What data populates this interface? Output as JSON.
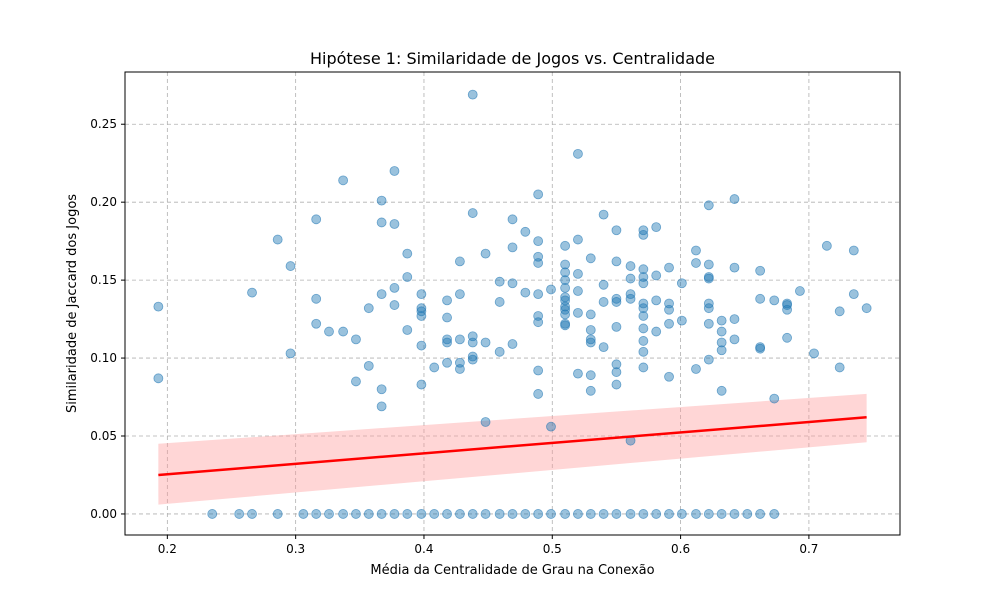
{
  "chart_data": {
    "type": "scatter",
    "title": "Hipótese 1: Similaridade de Jogos vs. Centralidade",
    "xlabel": "Média da Centralidade de Grau na Conexão",
    "ylabel": "Similaridade de Jaccard dos Jogos",
    "xlim": [
      0.167,
      0.771
    ],
    "ylim": [
      -0.0135,
      0.2835
    ],
    "xticks": [
      0.2,
      0.3,
      0.4,
      0.5,
      0.6,
      0.7
    ],
    "xtick_labels": [
      "0.2",
      "0.3",
      "0.4",
      "0.5",
      "0.6",
      "0.7"
    ],
    "yticks": [
      0.0,
      0.05,
      0.1,
      0.15,
      0.2,
      0.25
    ],
    "ytick_labels": [
      "0.00",
      "0.05",
      "0.10",
      "0.15",
      "0.20",
      "0.25"
    ],
    "grid": true,
    "colors": {
      "points": "#1f77b4",
      "fit_line": "#ff0000",
      "confidence_band": "#ff9999"
    },
    "points": [
      [
        0.193,
        0.133
      ],
      [
        0.193,
        0.087
      ],
      [
        0.266,
        0.142
      ],
      [
        0.286,
        0.176
      ],
      [
        0.296,
        0.159
      ],
      [
        0.296,
        0.103
      ],
      [
        0.316,
        0.189
      ],
      [
        0.316,
        0.138
      ],
      [
        0.316,
        0.122
      ],
      [
        0.326,
        0.117
      ],
      [
        0.337,
        0.214
      ],
      [
        0.337,
        0.117
      ],
      [
        0.347,
        0.112
      ],
      [
        0.347,
        0.085
      ],
      [
        0.357,
        0.132
      ],
      [
        0.357,
        0.095
      ],
      [
        0.367,
        0.201
      ],
      [
        0.367,
        0.187
      ],
      [
        0.367,
        0.141
      ],
      [
        0.367,
        0.08
      ],
      [
        0.367,
        0.069
      ],
      [
        0.377,
        0.22
      ],
      [
        0.377,
        0.186
      ],
      [
        0.377,
        0.145
      ],
      [
        0.377,
        0.134
      ],
      [
        0.387,
        0.167
      ],
      [
        0.387,
        0.152
      ],
      [
        0.387,
        0.118
      ],
      [
        0.398,
        0.141
      ],
      [
        0.398,
        0.132
      ],
      [
        0.398,
        0.13
      ],
      [
        0.398,
        0.127
      ],
      [
        0.398,
        0.108
      ],
      [
        0.398,
        0.083
      ],
      [
        0.408,
        0.094
      ],
      [
        0.418,
        0.137
      ],
      [
        0.418,
        0.126
      ],
      [
        0.418,
        0.112
      ],
      [
        0.418,
        0.11
      ],
      [
        0.418,
        0.097
      ],
      [
        0.428,
        0.162
      ],
      [
        0.428,
        0.141
      ],
      [
        0.428,
        0.112
      ],
      [
        0.428,
        0.097
      ],
      [
        0.428,
        0.093
      ],
      [
        0.438,
        0.269
      ],
      [
        0.438,
        0.193
      ],
      [
        0.438,
        0.114
      ],
      [
        0.438,
        0.11
      ],
      [
        0.438,
        0.101
      ],
      [
        0.438,
        0.099
      ],
      [
        0.448,
        0.167
      ],
      [
        0.448,
        0.11
      ],
      [
        0.448,
        0.059
      ],
      [
        0.459,
        0.149
      ],
      [
        0.459,
        0.136
      ],
      [
        0.459,
        0.104
      ],
      [
        0.469,
        0.189
      ],
      [
        0.469,
        0.171
      ],
      [
        0.469,
        0.148
      ],
      [
        0.469,
        0.109
      ],
      [
        0.479,
        0.181
      ],
      [
        0.479,
        0.142
      ],
      [
        0.489,
        0.205
      ],
      [
        0.489,
        0.175
      ],
      [
        0.489,
        0.165
      ],
      [
        0.489,
        0.161
      ],
      [
        0.489,
        0.141
      ],
      [
        0.489,
        0.127
      ],
      [
        0.489,
        0.123
      ],
      [
        0.489,
        0.092
      ],
      [
        0.489,
        0.077
      ],
      [
        0.499,
        0.144
      ],
      [
        0.499,
        0.056
      ],
      [
        0.51,
        0.172
      ],
      [
        0.51,
        0.16
      ],
      [
        0.51,
        0.155
      ],
      [
        0.51,
        0.15
      ],
      [
        0.51,
        0.145
      ],
      [
        0.51,
        0.139
      ],
      [
        0.51,
        0.137
      ],
      [
        0.51,
        0.133
      ],
      [
        0.51,
        0.131
      ],
      [
        0.51,
        0.128
      ],
      [
        0.51,
        0.122
      ],
      [
        0.51,
        0.121
      ],
      [
        0.52,
        0.231
      ],
      [
        0.52,
        0.176
      ],
      [
        0.52,
        0.154
      ],
      [
        0.52,
        0.143
      ],
      [
        0.52,
        0.129
      ],
      [
        0.52,
        0.09
      ],
      [
        0.53,
        0.164
      ],
      [
        0.53,
        0.128
      ],
      [
        0.53,
        0.118
      ],
      [
        0.53,
        0.112
      ],
      [
        0.53,
        0.11
      ],
      [
        0.53,
        0.089
      ],
      [
        0.53,
        0.079
      ],
      [
        0.54,
        0.192
      ],
      [
        0.54,
        0.147
      ],
      [
        0.54,
        0.136
      ],
      [
        0.54,
        0.107
      ],
      [
        0.55,
        0.182
      ],
      [
        0.55,
        0.162
      ],
      [
        0.55,
        0.138
      ],
      [
        0.55,
        0.136
      ],
      [
        0.55,
        0.12
      ],
      [
        0.55,
        0.096
      ],
      [
        0.55,
        0.091
      ],
      [
        0.55,
        0.083
      ],
      [
        0.561,
        0.159
      ],
      [
        0.561,
        0.151
      ],
      [
        0.561,
        0.141
      ],
      [
        0.561,
        0.138
      ],
      [
        0.561,
        0.047
      ],
      [
        0.571,
        0.182
      ],
      [
        0.571,
        0.179
      ],
      [
        0.571,
        0.157
      ],
      [
        0.571,
        0.152
      ],
      [
        0.571,
        0.148
      ],
      [
        0.571,
        0.135
      ],
      [
        0.571,
        0.132
      ],
      [
        0.571,
        0.127
      ],
      [
        0.571,
        0.119
      ],
      [
        0.571,
        0.111
      ],
      [
        0.571,
        0.104
      ],
      [
        0.571,
        0.094
      ],
      [
        0.581,
        0.184
      ],
      [
        0.581,
        0.153
      ],
      [
        0.581,
        0.137
      ],
      [
        0.581,
        0.117
      ],
      [
        0.591,
        0.158
      ],
      [
        0.591,
        0.135
      ],
      [
        0.591,
        0.131
      ],
      [
        0.591,
        0.122
      ],
      [
        0.591,
        0.088
      ],
      [
        0.601,
        0.148
      ],
      [
        0.601,
        0.124
      ],
      [
        0.612,
        0.169
      ],
      [
        0.612,
        0.161
      ],
      [
        0.612,
        0.093
      ],
      [
        0.622,
        0.198
      ],
      [
        0.622,
        0.16
      ],
      [
        0.622,
        0.152
      ],
      [
        0.622,
        0.151
      ],
      [
        0.622,
        0.135
      ],
      [
        0.622,
        0.132
      ],
      [
        0.622,
        0.122
      ],
      [
        0.622,
        0.099
      ],
      [
        0.632,
        0.124
      ],
      [
        0.632,
        0.117
      ],
      [
        0.632,
        0.11
      ],
      [
        0.632,
        0.105
      ],
      [
        0.632,
        0.079
      ],
      [
        0.642,
        0.202
      ],
      [
        0.642,
        0.158
      ],
      [
        0.642,
        0.125
      ],
      [
        0.642,
        0.112
      ],
      [
        0.662,
        0.156
      ],
      [
        0.662,
        0.138
      ],
      [
        0.662,
        0.107
      ],
      [
        0.662,
        0.106
      ],
      [
        0.673,
        0.137
      ],
      [
        0.673,
        0.074
      ],
      [
        0.683,
        0.135
      ],
      [
        0.683,
        0.134
      ],
      [
        0.683,
        0.131
      ],
      [
        0.683,
        0.113
      ],
      [
        0.693,
        0.143
      ],
      [
        0.704,
        0.103
      ],
      [
        0.714,
        0.172
      ],
      [
        0.724,
        0.13
      ],
      [
        0.724,
        0.094
      ],
      [
        0.735,
        0.169
      ],
      [
        0.735,
        0.141
      ],
      [
        0.745,
        0.132
      ],
      [
        0.235,
        0.0
      ],
      [
        0.256,
        0.0
      ],
      [
        0.266,
        0.0
      ],
      [
        0.286,
        0.0
      ],
      [
        0.306,
        0.0
      ],
      [
        0.316,
        0.0
      ],
      [
        0.326,
        0.0
      ],
      [
        0.337,
        0.0
      ],
      [
        0.347,
        0.0
      ],
      [
        0.357,
        0.0
      ],
      [
        0.367,
        0.0
      ],
      [
        0.377,
        0.0
      ],
      [
        0.387,
        0.0
      ],
      [
        0.398,
        0.0
      ],
      [
        0.408,
        0.0
      ],
      [
        0.418,
        0.0
      ],
      [
        0.428,
        0.0
      ],
      [
        0.438,
        0.0
      ],
      [
        0.448,
        0.0
      ],
      [
        0.459,
        0.0
      ],
      [
        0.469,
        0.0
      ],
      [
        0.479,
        0.0
      ],
      [
        0.489,
        0.0
      ],
      [
        0.499,
        0.0
      ],
      [
        0.51,
        0.0
      ],
      [
        0.52,
        0.0
      ],
      [
        0.53,
        0.0
      ],
      [
        0.54,
        0.0
      ],
      [
        0.55,
        0.0
      ],
      [
        0.561,
        0.0
      ],
      [
        0.571,
        0.0
      ],
      [
        0.581,
        0.0
      ],
      [
        0.591,
        0.0
      ],
      [
        0.601,
        0.0
      ],
      [
        0.612,
        0.0
      ],
      [
        0.622,
        0.0
      ],
      [
        0.632,
        0.0
      ],
      [
        0.642,
        0.0
      ],
      [
        0.652,
        0.0
      ],
      [
        0.662,
        0.0
      ],
      [
        0.673,
        0.0
      ]
    ],
    "regression": {
      "x": [
        0.193,
        0.745
      ],
      "y": [
        0.025,
        0.062
      ],
      "ci_lower": [
        0.006,
        0.046
      ],
      "ci_upper": [
        0.045,
        0.077
      ]
    }
  }
}
